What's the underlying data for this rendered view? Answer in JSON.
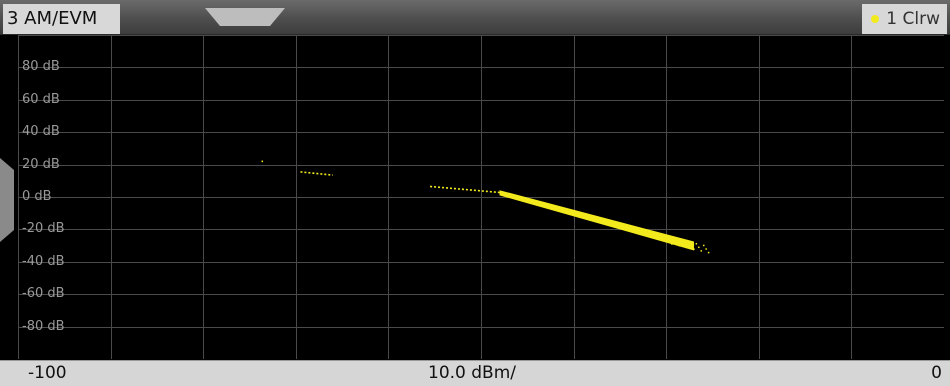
{
  "header": {
    "title": "3 AM/EVM",
    "trace_label": "1 Clrw"
  },
  "colors": {
    "trace": "#f2ea1c",
    "grid": "#4a4a4a",
    "background": "#000000"
  },
  "y_axis": {
    "unit": "dB",
    "tick_labels": [
      "80 dB",
      "60 dB",
      "40 dB",
      "20 dB",
      "0 dB",
      "-20 dB",
      "-40 dB",
      "-60 dB",
      "-80 dB"
    ]
  },
  "footer": {
    "x_start": "-100",
    "x_scale": "10.0 dBm/",
    "x_stop": "0"
  },
  "chart_data": {
    "type": "scatter",
    "xlim": [
      -100,
      0
    ],
    "ylim": [
      -100,
      100
    ],
    "grid": true,
    "segments": [
      {
        "x": [
          -73.7,
          -73.7
        ],
        "y": [
          22,
          22
        ]
      },
      {
        "x": [
          -69.5,
          -66.0
        ],
        "y": [
          15.5,
          13.5
        ]
      },
      {
        "x": [
          -55.5,
          -48.0
        ],
        "y": [
          6.5,
          2.8
        ]
      },
      {
        "x": [
          -48.0,
          -27.0
        ],
        "y": [
          2.8,
          -30.0
        ]
      }
    ],
    "band_upper": {
      "x": [
        -48,
        -27
      ],
      "y": [
        4.2,
        -27.5
      ]
    },
    "band_lower": {
      "x": [
        -48,
        -27
      ],
      "y": [
        1.0,
        -33.0
      ]
    }
  }
}
